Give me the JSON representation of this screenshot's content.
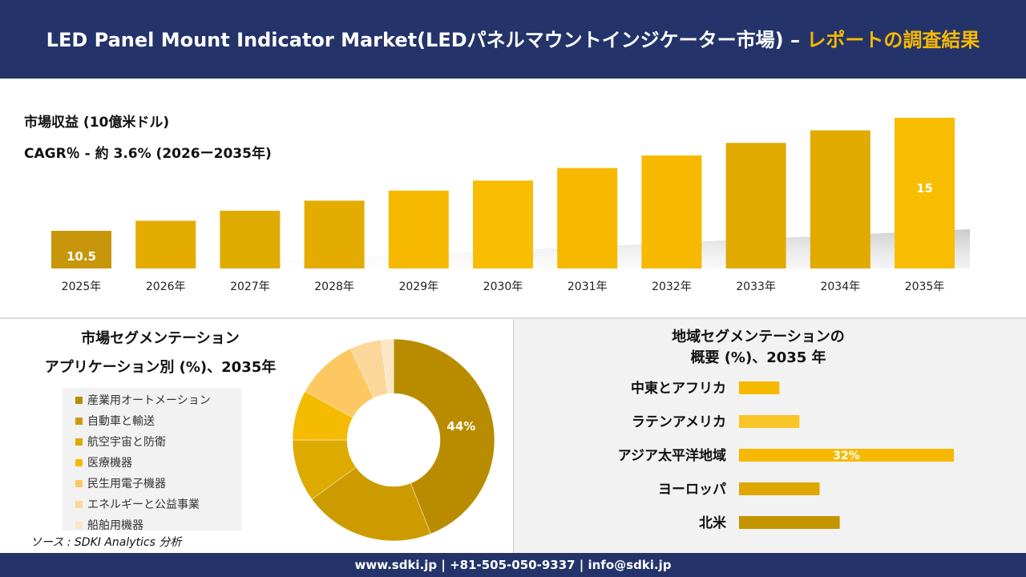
{
  "header": {
    "title_main": "LED Panel Mount Indicator Market(LEDパネルマウントインジケーター市場) – ",
    "title_accent": "レポートの調査結果"
  },
  "metrics": {
    "revenue_label": "市場収益 (10億米ドル)",
    "cagr_label": "CAGR％ - 約 3.6% (2026ー2035年)"
  },
  "colors": {
    "navy": "#24346a",
    "accent": "#f7b900",
    "gold_dark": "#c8960a",
    "gold": "#e0aa00",
    "gold_light": "#f7b900"
  },
  "segment_panel": {
    "title_line1": "市場セグメンテーション",
    "title_line2": "アプリケーション別 (%)、2035年",
    "legend": [
      {
        "label": "産業用オートメーション",
        "color": "#b98c00"
      },
      {
        "label": "自動車と輸送",
        "color": "#cc9b00"
      },
      {
        "label": "航空宇宙と防衛",
        "color": "#ddaa00"
      },
      {
        "label": "医療機器",
        "color": "#f4bb00"
      },
      {
        "label": "民生用電子機器",
        "color": "#fdc862"
      },
      {
        "label": "エネルギーと公益事業",
        "color": "#fcd79a"
      },
      {
        "label": "船舶用機器",
        "color": "#fde6c4"
      }
    ],
    "source": "ソース : SDKI Analytics 分析"
  },
  "region_panel": {
    "title_line1": "地域セグメンテーションの",
    "title_line2": "概要 (%)、2035 年"
  },
  "footer": {
    "text": "www.sdki.jp | +81-505-050-9337 | info@sdki.jp"
  },
  "chart_data": [
    {
      "type": "bar",
      "categories": [
        "2025年",
        "2026年",
        "2027年",
        "2028年",
        "2029年",
        "2030年",
        "2031年",
        "2032年",
        "2033年",
        "2034年",
        "2035年"
      ],
      "values": [
        10.5,
        10.9,
        11.3,
        11.7,
        12.1,
        12.5,
        13.0,
        13.5,
        14.0,
        14.5,
        15.0
      ],
      "data_labels": {
        "2025年": "10.5",
        "2035年": "15"
      },
      "title": "市場収益 (10億米ドル)",
      "ylim": [
        0,
        15
      ],
      "grid": false
    },
    {
      "type": "pie",
      "categories": [
        "産業用オートメーション",
        "自動車と輸送",
        "航空宇宙と防衛",
        "医療機器",
        "民生用電子機器",
        "エネルギーと公益事業",
        "船舶用機器"
      ],
      "values": [
        44,
        21,
        10,
        8,
        10,
        5,
        2
      ],
      "data_labels": {
        "産業用オートメーション": "44%"
      },
      "donut": true
    },
    {
      "type": "bar",
      "orientation": "horizontal",
      "categories": [
        "中東とアフリカ",
        "ラテンアメリカ",
        "アジア太平洋地域",
        "ヨーロッパ",
        "北米"
      ],
      "values": [
        6,
        9,
        32,
        12,
        15
      ],
      "data_labels": {
        "アジア太平洋地域": "32%"
      },
      "colors": [
        "#f7b900",
        "#f9c428",
        "#f6b800",
        "#dea800",
        "#c49500"
      ],
      "xlim": [
        0,
        32
      ]
    }
  ]
}
